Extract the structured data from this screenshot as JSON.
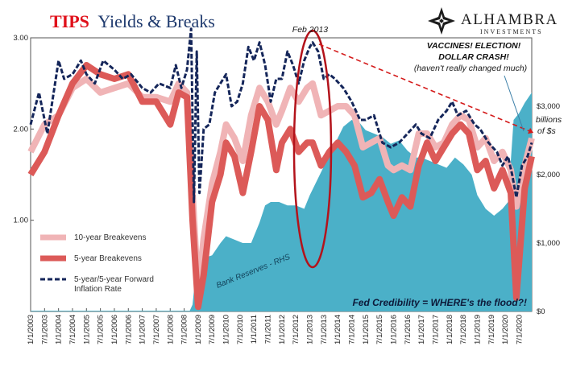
{
  "title": {
    "highlight": "TIPS",
    "rest": "Yields & Breaks"
  },
  "logo": {
    "name": "ALHAMBRA",
    "sub": "INVESTMENTS"
  },
  "annotations": {
    "feb2013": "Feb 2013",
    "vaccines_line1": "VACCINES! ELECTION!",
    "vaccines_line2": "DOLLAR CRASH!",
    "vaccines_line3": "(haven't really changed much)",
    "billions1": "billions",
    "billions2": "of $s",
    "bank_reserves": "Bank Reserves - RHS",
    "fed_credibility": "Fed Credibility = WHERE's the flood?!"
  },
  "legend": [
    {
      "label": "10-year Breakevens",
      "color": "#f0b4b6"
    },
    {
      "label": "5-year Breakevens",
      "color": "#dc5a58"
    },
    {
      "label": "5-year/5-year Forward",
      "label2": "Inflation Rate",
      "color": "#15265a"
    }
  ],
  "colors": {
    "reserves": "#4bb0c8",
    "ten_year": "#f0b4b6",
    "five_year": "#dc5a58",
    "fwd": "#15265a",
    "ellipse": "#b3131b",
    "trend": "#d41a1a"
  },
  "chart_data": {
    "type": "line",
    "left_axis": {
      "ticks": [
        "1.00",
        "2.00",
        "3.00"
      ],
      "ylim": [
        0,
        3
      ]
    },
    "right_axis": {
      "ticks": [
        "$0",
        "$1,000",
        "$2,000",
        "$3,000"
      ],
      "ylim": [
        0,
        4000
      ]
    },
    "x_ticks": [
      "1/1/2003",
      "7/1/2003",
      "1/1/2004",
      "7/1/2004",
      "1/1/2005",
      "7/1/2005",
      "1/1/2006",
      "7/1/2006",
      "1/1/2007",
      "7/1/2007",
      "1/1/2008",
      "7/1/2008",
      "1/1/2009",
      "7/1/2009",
      "1/1/2010",
      "7/1/2010",
      "1/1/2011",
      "7/1/2011",
      "1/1/2012",
      "7/1/2012",
      "1/1/2013",
      "7/1/2013",
      "1/1/2014",
      "7/1/2014",
      "1/1/2015",
      "7/1/2015",
      "1/1/2016",
      "7/1/2016",
      "1/1/2017",
      "7/1/2017",
      "1/1/2018",
      "7/1/2018",
      "1/1/2019",
      "7/1/2019",
      "1/1/2020",
      "7/1/2020"
    ],
    "xlim": [
      2003.0,
      2020.95
    ],
    "series": [
      {
        "name": "Bank Reserves - RHS",
        "axis": "right",
        "x": [
          2003.0,
          2008.7,
          2008.8,
          2008.9,
          2009.0,
          2009.2,
          2009.5,
          2009.8,
          2010.0,
          2010.3,
          2010.6,
          2010.9,
          2011.2,
          2011.4,
          2011.6,
          2011.9,
          2012.2,
          2012.5,
          2012.8,
          2013.0,
          2013.3,
          2013.6,
          2013.9,
          2014.2,
          2014.5,
          2014.8,
          2015.0,
          2015.3,
          2015.6,
          2015.9,
          2016.2,
          2016.5,
          2016.8,
          2017.0,
          2017.3,
          2017.6,
          2017.9,
          2018.2,
          2018.5,
          2018.8,
          2019.0,
          2019.3,
          2019.6,
          2019.9,
          2020.1,
          2020.3,
          2020.5,
          2020.7,
          2020.95
        ],
        "values": [
          10,
          10,
          100,
          500,
          800,
          780,
          820,
          1000,
          1100,
          1050,
          1000,
          1000,
          1300,
          1550,
          1600,
          1600,
          1550,
          1550,
          1500,
          1700,
          1950,
          2200,
          2450,
          2700,
          2800,
          2750,
          2650,
          2600,
          2550,
          2450,
          2500,
          2350,
          2250,
          2250,
          2200,
          2150,
          2100,
          2250,
          2150,
          2000,
          1700,
          1500,
          1400,
          1500,
          1600,
          2800,
          2900,
          3050,
          3200
        ]
      },
      {
        "name": "10-year Breakevens",
        "axis": "left",
        "x": [
          2003.0,
          2003.5,
          2004.0,
          2004.5,
          2005.0,
          2005.5,
          2006.0,
          2006.5,
          2007.0,
          2007.5,
          2008.0,
          2008.3,
          2008.6,
          2008.8,
          2009.0,
          2009.2,
          2009.5,
          2009.8,
          2010.0,
          2010.3,
          2010.6,
          2010.9,
          2011.2,
          2011.5,
          2011.8,
          2012.0,
          2012.3,
          2012.6,
          2012.9,
          2013.1,
          2013.4,
          2013.7,
          2014.0,
          2014.3,
          2014.6,
          2014.9,
          2015.2,
          2015.5,
          2015.8,
          2016.0,
          2016.3,
          2016.6,
          2016.9,
          2017.2,
          2017.5,
          2017.8,
          2018.1,
          2018.4,
          2018.7,
          2019.0,
          2019.3,
          2019.6,
          2019.9,
          2020.2,
          2020.4,
          2020.7,
          2020.95
        ],
        "values": [
          1.75,
          2.05,
          2.15,
          2.45,
          2.55,
          2.4,
          2.45,
          2.5,
          2.35,
          2.35,
          2.3,
          2.5,
          2.4,
          1.3,
          0.2,
          0.8,
          1.4,
          1.75,
          2.05,
          1.9,
          1.65,
          2.15,
          2.45,
          2.3,
          2.05,
          2.2,
          2.45,
          2.3,
          2.45,
          2.5,
          2.15,
          2.2,
          2.25,
          2.25,
          2.15,
          1.8,
          1.85,
          1.9,
          1.6,
          1.55,
          1.6,
          1.55,
          1.95,
          1.95,
          1.8,
          1.85,
          2.05,
          2.15,
          2.1,
          1.8,
          1.9,
          1.65,
          1.75,
          1.55,
          1.15,
          1.6,
          1.9
        ]
      },
      {
        "name": "5-year Breakevens",
        "axis": "left",
        "x": [
          2003.0,
          2003.5,
          2004.0,
          2004.5,
          2005.0,
          2005.5,
          2006.0,
          2006.5,
          2007.0,
          2007.5,
          2008.0,
          2008.3,
          2008.6,
          2008.8,
          2009.0,
          2009.2,
          2009.5,
          2009.8,
          2010.0,
          2010.3,
          2010.6,
          2010.9,
          2011.2,
          2011.5,
          2011.8,
          2012.0,
          2012.3,
          2012.6,
          2012.9,
          2013.1,
          2013.4,
          2013.7,
          2014.0,
          2014.3,
          2014.6,
          2014.9,
          2015.2,
          2015.5,
          2015.8,
          2016.0,
          2016.3,
          2016.6,
          2016.9,
          2017.2,
          2017.5,
          2017.8,
          2018.1,
          2018.4,
          2018.7,
          2019.0,
          2019.3,
          2019.6,
          2019.9,
          2020.2,
          2020.4,
          2020.7,
          2020.95
        ],
        "values": [
          1.5,
          1.75,
          2.15,
          2.5,
          2.7,
          2.6,
          2.55,
          2.6,
          2.3,
          2.3,
          2.05,
          2.4,
          2.35,
          1.0,
          0.05,
          0.4,
          1.2,
          1.5,
          1.85,
          1.7,
          1.3,
          1.75,
          2.25,
          2.1,
          1.55,
          1.85,
          2.0,
          1.75,
          1.85,
          1.85,
          1.6,
          1.75,
          1.85,
          1.75,
          1.6,
          1.25,
          1.3,
          1.45,
          1.2,
          1.05,
          1.25,
          1.15,
          1.6,
          1.85,
          1.65,
          1.8,
          1.95,
          2.05,
          1.95,
          1.55,
          1.65,
          1.35,
          1.55,
          1.3,
          0.15,
          1.35,
          1.7
        ]
      },
      {
        "name": "5-year/5-year Forward Inflation Rate",
        "axis": "left",
        "x": [
          2003.0,
          2003.3,
          2003.6,
          2004.0,
          2004.2,
          2004.5,
          2004.8,
          2005.0,
          2005.3,
          2005.6,
          2006.0,
          2006.3,
          2006.6,
          2007.0,
          2007.3,
          2007.6,
          2008.0,
          2008.2,
          2008.4,
          2008.6,
          2008.75,
          2008.85,
          2008.95,
          2009.05,
          2009.2,
          2009.4,
          2009.6,
          2009.8,
          2010.0,
          2010.2,
          2010.4,
          2010.6,
          2010.8,
          2011.0,
          2011.2,
          2011.4,
          2011.6,
          2011.8,
          2012.0,
          2012.2,
          2012.4,
          2012.6,
          2012.8,
          2013.0,
          2013.1,
          2013.3,
          2013.5,
          2013.7,
          2013.9,
          2014.2,
          2014.5,
          2014.8,
          2015.0,
          2015.3,
          2015.6,
          2015.9,
          2016.2,
          2016.5,
          2016.8,
          2017.0,
          2017.3,
          2017.6,
          2017.9,
          2018.1,
          2018.3,
          2018.6,
          2018.9,
          2019.1,
          2019.4,
          2019.7,
          2019.9,
          2020.1,
          2020.25,
          2020.4,
          2020.6,
          2020.8,
          2020.95
        ],
        "values": [
          2.05,
          2.4,
          1.95,
          2.75,
          2.55,
          2.6,
          2.75,
          2.6,
          2.5,
          2.75,
          2.65,
          2.55,
          2.6,
          2.45,
          2.4,
          2.5,
          2.45,
          2.7,
          2.45,
          2.65,
          3.1,
          1.2,
          2.85,
          1.3,
          2.0,
          2.05,
          2.4,
          2.5,
          2.6,
          2.25,
          2.3,
          2.5,
          2.9,
          2.75,
          2.95,
          2.7,
          2.3,
          2.55,
          2.55,
          2.85,
          2.7,
          2.5,
          2.75,
          2.9,
          2.95,
          2.85,
          2.55,
          2.6,
          2.55,
          2.45,
          2.3,
          2.1,
          2.1,
          2.15,
          1.85,
          1.8,
          1.85,
          1.95,
          2.05,
          1.95,
          1.9,
          2.1,
          2.2,
          2.3,
          2.15,
          2.2,
          2.05,
          2.0,
          1.85,
          1.75,
          1.6,
          1.7,
          1.5,
          1.25,
          1.6,
          1.7,
          1.85
        ]
      }
    ]
  }
}
